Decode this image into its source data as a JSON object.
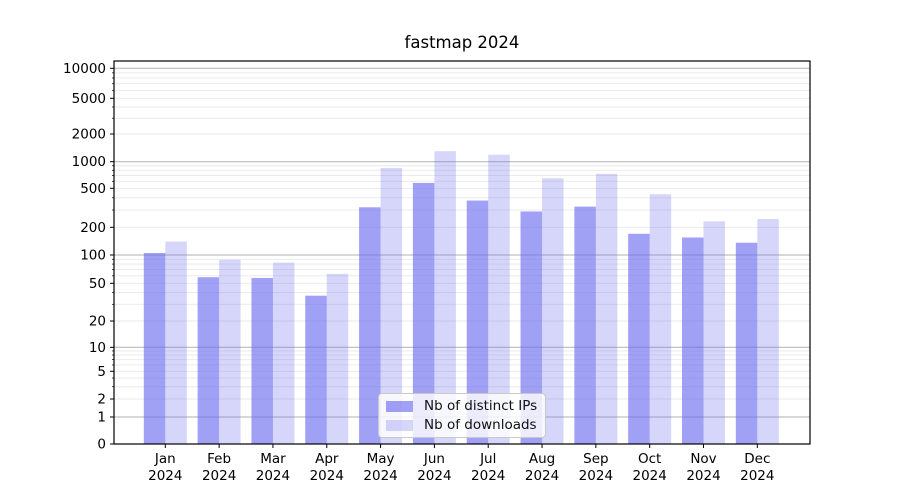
{
  "figure": {
    "background": "#ffffff",
    "title": "fastmap 2024"
  },
  "chart_data": {
    "type": "bar",
    "title": "fastmap 2024",
    "categories": [
      "Jan 2024",
      "Feb 2024",
      "Mar 2024",
      "Apr 2024",
      "May 2024",
      "Jun 2024",
      "Jul 2024",
      "Aug 2024",
      "Sep 2024",
      "Oct 2024",
      "Nov 2024",
      "Dec 2024"
    ],
    "xtick_month_line": [
      "Jan",
      "Feb",
      "Mar",
      "Apr",
      "May",
      "Jun",
      "Jul",
      "Aug",
      "Sep",
      "Oct",
      "Nov",
      "Dec"
    ],
    "xtick_year_line": "2024",
    "series": [
      {
        "name": "Nb of distinct IPs",
        "color": "#6666ee",
        "alpha": 0.62,
        "values": [
          105,
          58,
          57,
          37,
          320,
          575,
          375,
          290,
          325,
          170,
          155,
          136
        ]
      },
      {
        "name": "Nb of downloads",
        "color": "#6666ee",
        "alpha": 0.27,
        "values": [
          140,
          89,
          83,
          63,
          850,
          1300,
          1190,
          650,
          730,
          435,
          230,
          243
        ]
      }
    ],
    "xlabel": "",
    "ylabel": "",
    "yscale": "symlog",
    "ylim": [
      0,
      13000
    ],
    "ytick_values": [
      0,
      1,
      2,
      5,
      10,
      20,
      50,
      100,
      200,
      500,
      1000,
      2000,
      5000,
      10000
    ],
    "ytick_labels": [
      "0",
      "1",
      "2",
      "5",
      "10",
      "20",
      "50",
      "100",
      "200",
      "500",
      "1000",
      "2000",
      "5000",
      "10000"
    ],
    "grid": {
      "horizontal_major": true,
      "horizontal_minor": true,
      "vertical": false
    },
    "grid_colors": {
      "major": "#b2b2b2",
      "minor": "#e8e8e8"
    },
    "legend": {
      "position": "lower center",
      "entries": [
        "Nb of distinct IPs",
        "Nb of downloads"
      ]
    }
  }
}
